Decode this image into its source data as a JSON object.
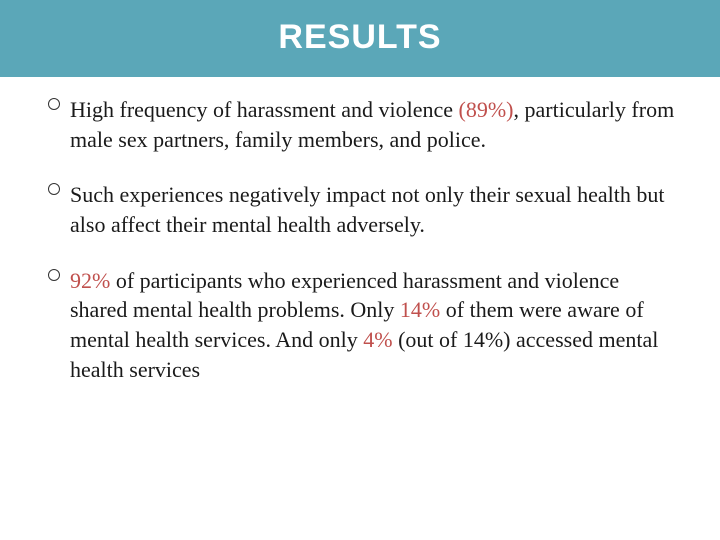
{
  "header": {
    "title": "RESULTS",
    "background_color": "#5ba7b8",
    "title_color": "#ffffff",
    "title_fontsize": 34
  },
  "body": {
    "text_color": "#1a1a1a",
    "highlight_color": "#c0504d",
    "fontsize": 22,
    "bullets": [
      {
        "segments": [
          {
            "text": "High frequency of harassment and violence ",
            "hl": false
          },
          {
            "text": "(89%)",
            "hl": true
          },
          {
            "text": ", particularly from male sex partners, family members, and police.",
            "hl": false
          }
        ]
      },
      {
        "segments": [
          {
            "text": "Such experiences negatively impact not only their sexual health but also affect their mental health adversely.",
            "hl": false
          }
        ]
      },
      {
        "segments": [
          {
            "text": "92% ",
            "hl": true
          },
          {
            "text": "of participants who experienced harassment and violence shared mental health problems. Only ",
            "hl": false
          },
          {
            "text": "14% ",
            "hl": true
          },
          {
            "text": "of them were aware of mental health services. And only ",
            "hl": false
          },
          {
            "text": "4% ",
            "hl": true
          },
          {
            "text": "(out of 14%) accessed mental health services",
            "hl": false
          }
        ]
      }
    ]
  }
}
